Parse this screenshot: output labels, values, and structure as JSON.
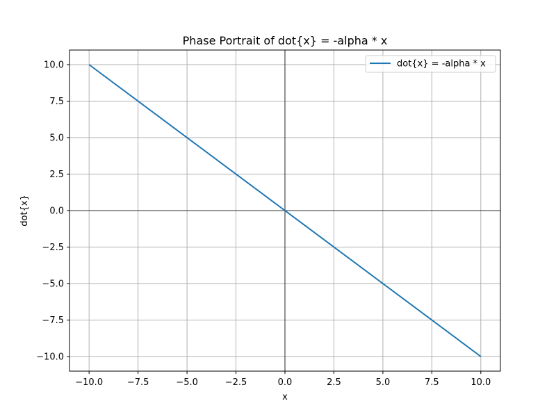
{
  "chart_data": {
    "type": "line",
    "title": "Phase Portrait of dot{x} = -alpha * x",
    "xlabel": "x",
    "ylabel": "dot{x}",
    "xlim": [
      -11,
      11
    ],
    "ylim": [
      -11,
      11
    ],
    "xticks": [
      -10.0,
      -7.5,
      -5.0,
      -2.5,
      0.0,
      2.5,
      5.0,
      7.5,
      10.0
    ],
    "yticks": [
      -10.0,
      -7.5,
      -5.0,
      -2.5,
      0.0,
      2.5,
      5.0,
      7.5,
      10.0
    ],
    "xtick_labels": [
      "−10.0",
      "−7.5",
      "−5.0",
      "−2.5",
      "0.0",
      "2.5",
      "5.0",
      "7.5",
      "10.0"
    ],
    "ytick_labels": [
      "−10.0",
      "−7.5",
      "−5.0",
      "−2.5",
      "0.0",
      "2.5",
      "5.0",
      "7.5",
      "10.0"
    ],
    "grid": true,
    "legend_position": "top-right",
    "zero_lines": true,
    "series": [
      {
        "name": "dot{x} = -alpha * x",
        "color": "#1f77b4",
        "x": [
          -10,
          10
        ],
        "y": [
          10,
          -10
        ]
      }
    ]
  }
}
